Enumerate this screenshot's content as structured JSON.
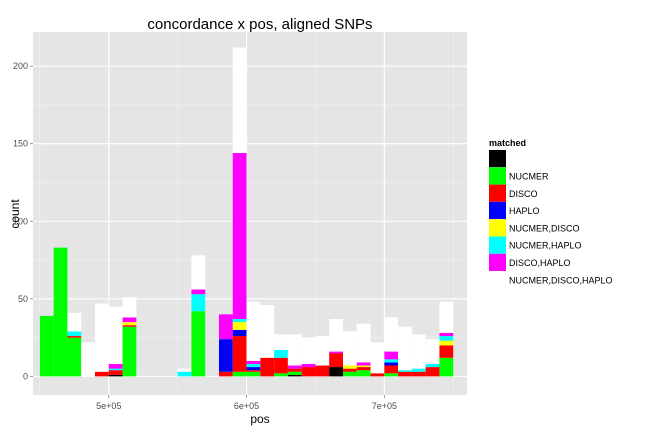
{
  "chart_data": {
    "type": "bar",
    "stacked": true,
    "title": "concordance x pos, aligned SNPs",
    "xlabel": "pos",
    "ylabel": "count",
    "xlim": [
      445000,
      760000
    ],
    "ylim": [
      -12,
      222
    ],
    "bin_width": 10000,
    "x_ticks": [
      {
        "value": 500000,
        "label": "5e+05"
      },
      {
        "value": 600000,
        "label": "6e+05"
      },
      {
        "value": 700000,
        "label": "7e+05"
      }
    ],
    "y_ticks": [
      {
        "value": 0,
        "label": "0"
      },
      {
        "value": 50,
        "label": "50"
      },
      {
        "value": 100,
        "label": "100"
      },
      {
        "value": 150,
        "label": "150"
      },
      {
        "value": 200,
        "label": "200"
      }
    ],
    "grid": true,
    "legend": {
      "title": "matched",
      "position": "right",
      "entries": [
        {
          "key": "none",
          "label": "",
          "color": "#000000"
        },
        {
          "key": "NUCMER",
          "label": "NUCMER",
          "color": "#00ff00"
        },
        {
          "key": "DISCO",
          "label": "DISCO",
          "color": "#ff0000"
        },
        {
          "key": "HAPLO",
          "label": "HAPLO",
          "color": "#0000ff"
        },
        {
          "key": "NUCMER,DISCO",
          "label": "NUCMER,DISCO",
          "color": "#ffff00"
        },
        {
          "key": "NUCMER,HAPLO",
          "label": "NUCMER,HAPLO",
          "color": "#00ffff"
        },
        {
          "key": "DISCO,HAPLO",
          "label": "DISCO,HAPLO",
          "color": "#ff00ff"
        },
        {
          "key": "NUCMER,DISCO,HAPLO",
          "label": "NUCMER,DISCO,HAPLO",
          "color": "#ffffff"
        }
      ]
    },
    "bins": [
      {
        "x": 455000,
        "counts": {
          "NUCMER": 39
        }
      },
      {
        "x": 465000,
        "counts": {
          "NUCMER": 83
        }
      },
      {
        "x": 475000,
        "counts": {
          "NUCMER": 25,
          "DISCO": 1,
          "NUCMER,HAPLO": 3,
          "NUCMER,DISCO,HAPLO": 12
        }
      },
      {
        "x": 485000,
        "counts": {
          "NUCMER,DISCO,HAPLO": 22
        }
      },
      {
        "x": 495000,
        "counts": {
          "DISCO": 3,
          "NUCMER,DISCO,HAPLO": 44
        }
      },
      {
        "x": 505000,
        "counts": {
          "none": 1,
          "DISCO": 3,
          "NUCMER,HAPLO": 1,
          "DISCO,HAPLO": 3,
          "NUCMER,DISCO,HAPLO": 37
        }
      },
      {
        "x": 515000,
        "counts": {
          "NUCMER": 32,
          "DISCO": 1,
          "NUCMER,DISCO": 2,
          "DISCO,HAPLO": 3,
          "NUCMER,DISCO,HAPLO": 13
        }
      },
      {
        "x": 555000,
        "counts": {
          "NUCMER,HAPLO": 3,
          "NUCMER,DISCO,HAPLO": 2
        }
      },
      {
        "x": 565000,
        "counts": {
          "NUCMER": 42,
          "NUCMER,HAPLO": 11,
          "DISCO,HAPLO": 3,
          "NUCMER,DISCO,HAPLO": 22
        }
      },
      {
        "x": 585000,
        "counts": {
          "DISCO": 3,
          "HAPLO": 21,
          "DISCO,HAPLO": 16
        }
      },
      {
        "x": 595000,
        "counts": {
          "NUCMER": 3,
          "DISCO": 23,
          "HAPLO": 4,
          "NUCMER,DISCO": 5,
          "NUCMER,HAPLO": 2,
          "DISCO,HAPLO": 107,
          "NUCMER,DISCO,HAPLO": 68
        }
      },
      {
        "x": 605000,
        "counts": {
          "NUCMER": 3,
          "DISCO": 1,
          "HAPLO": 2,
          "NUCMER,HAPLO": 2,
          "DISCO,HAPLO": 2,
          "NUCMER,DISCO,HAPLO": 38
        }
      },
      {
        "x": 615000,
        "counts": {
          "DISCO": 12,
          "NUCMER,DISCO,HAPLO": 34
        }
      },
      {
        "x": 625000,
        "counts": {
          "NUCMER": 2,
          "DISCO": 10,
          "NUCMER,HAPLO": 5,
          "NUCMER,DISCO,HAPLO": 10
        }
      },
      {
        "x": 635000,
        "counts": {
          "none": 1,
          "NUCMER": 2,
          "DISCO": 2,
          "DISCO,HAPLO": 2,
          "NUCMER,DISCO,HAPLO": 20
        }
      },
      {
        "x": 645000,
        "counts": {
          "DISCO": 6,
          "DISCO,HAPLO": 2,
          "NUCMER,DISCO,HAPLO": 17
        }
      },
      {
        "x": 655000,
        "counts": {
          "DISCO": 7,
          "NUCMER,DISCO,HAPLO": 19
        }
      },
      {
        "x": 665000,
        "counts": {
          "none": 6,
          "DISCO": 9,
          "DISCO,HAPLO": 1,
          "NUCMER,DISCO,HAPLO": 21
        }
      },
      {
        "x": 675000,
        "counts": {
          "NUCMER": 3,
          "DISCO": 2,
          "NUCMER,DISCO": 2,
          "NUCMER,DISCO,HAPLO": 22
        }
      },
      {
        "x": 685000,
        "counts": {
          "NUCMER": 4,
          "DISCO": 2,
          "NUCMER,DISCO": 1,
          "DISCO,HAPLO": 2,
          "NUCMER,DISCO,HAPLO": 25
        }
      },
      {
        "x": 695000,
        "counts": {
          "DISCO": 2,
          "NUCMER,DISCO,HAPLO": 20
        }
      },
      {
        "x": 705000,
        "counts": {
          "NUCMER": 2,
          "DISCO": 5,
          "HAPLO": 2,
          "NUCMER,HAPLO": 2,
          "DISCO,HAPLO": 5,
          "NUCMER,DISCO,HAPLO": 22
        }
      },
      {
        "x": 715000,
        "counts": {
          "DISCO": 3,
          "NUCMER,HAPLO": 1,
          "NUCMER,DISCO,HAPLO": 28
        }
      },
      {
        "x": 725000,
        "counts": {
          "DISCO": 3,
          "NUCMER,HAPLO": 2,
          "NUCMER,DISCO,HAPLO": 22
        }
      },
      {
        "x": 735000,
        "counts": {
          "DISCO": 6,
          "NUCMER,HAPLO": 2,
          "NUCMER,DISCO,HAPLO": 16
        }
      },
      {
        "x": 745000,
        "counts": {
          "NUCMER": 12,
          "DISCO": 8,
          "NUCMER,DISCO": 3,
          "NUCMER,HAPLO": 3,
          "DISCO,HAPLO": 2,
          "NUCMER,DISCO,HAPLO": 20
        }
      }
    ]
  }
}
